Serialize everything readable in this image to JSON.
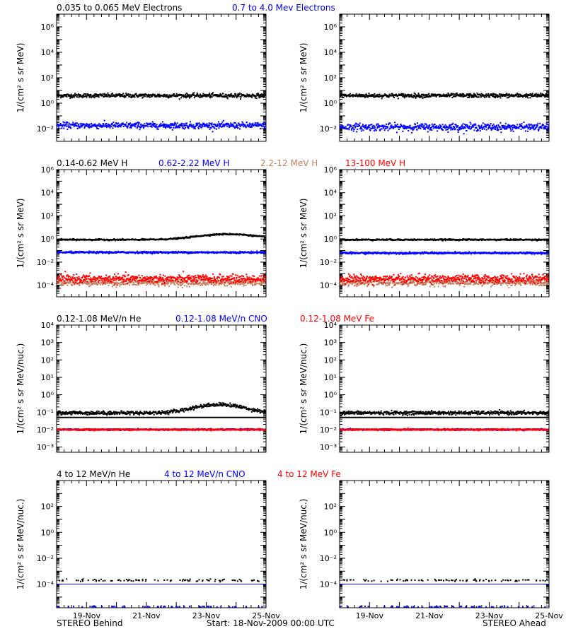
{
  "colors": {
    "black": "#000000",
    "blue": "#0000ff",
    "tan": "#c08060",
    "red": "#ff0000"
  },
  "footer": {
    "left": "STEREO Behind",
    "center": "Start: 18-Nov-2009 00:00 UTC",
    "right": "STEREO Ahead"
  },
  "x_axis": {
    "ticks": [
      "19-Nov",
      "21-Nov",
      "23-Nov",
      "25-Nov"
    ],
    "range_days_start": "18-Nov-2009 00:00",
    "tick_day_values": [
      1,
      3,
      5,
      7
    ]
  },
  "chart_data": [
    {
      "type": "scatter",
      "row": 1,
      "yscale": "log",
      "ylabel": "1/(cm² s sr MeV)",
      "ylim": [
        0.001,
        10000000
      ],
      "y_tick_labels": [
        "10⁻²",
        "10⁰",
        "10²",
        "10⁴",
        "10⁶"
      ],
      "legend": [
        {
          "text": "0.035 to 0.065 MeV Electrons",
          "color": "black"
        },
        {
          "text": "0.7 to 4.0 Mev Electrons",
          "color": "blue"
        }
      ],
      "panels": [
        {
          "spacecraft": "STEREO Behind",
          "series": [
            {
              "name": "0.035 to 0.065 MeV Electrons",
              "color": "black",
              "level": 4.5,
              "spread": 0.08
            },
            {
              "name": "0.7 to 4.0 Mev Electrons",
              "color": "blue",
              "level": 0.02,
              "spread": 0.12
            }
          ]
        },
        {
          "spacecraft": "STEREO Ahead",
          "series": [
            {
              "name": "0.035 to 0.065 MeV Electrons",
              "color": "black",
              "level": 4.5,
              "spread": 0.08
            },
            {
              "name": "0.7 to 4.0 Mev Electrons",
              "color": "blue",
              "level": 0.015,
              "spread": 0.14
            }
          ]
        }
      ]
    },
    {
      "type": "scatter",
      "row": 2,
      "yscale": "log",
      "ylabel": "1/(cm² s sr MeV)",
      "ylim": [
        1e-05,
        1000000
      ],
      "y_tick_labels": [
        "10⁻⁴",
        "10⁻²",
        "10⁰",
        "10²",
        "10⁴",
        "10⁶"
      ],
      "legend": [
        {
          "text": "0.14-0.62 MeV H",
          "color": "black"
        },
        {
          "text": "0.62-2.22 MeV H",
          "color": "blue"
        },
        {
          "text": "2.2-12 MeV H",
          "color": "tan"
        },
        {
          "text": "13-100 MeV H",
          "color": "red"
        }
      ],
      "panels": [
        {
          "spacecraft": "STEREO Behind",
          "series": [
            {
              "name": "0.14-0.62 MeV H",
              "color": "black",
              "level": 1.0,
              "spread": 0.03,
              "bump": {
                "center_day": 5.7,
                "width": 1.2,
                "factor": 3
              }
            },
            {
              "name": "0.62-2.22 MeV H",
              "color": "blue",
              "level": 0.08,
              "spread": 0.04
            },
            {
              "name": "2.2-12 MeV H",
              "color": "tan",
              "level": 0.0002,
              "spread": 0.15
            },
            {
              "name": "13-100 MeV H",
              "color": "red",
              "level": 0.0004,
              "spread": 0.18
            }
          ]
        },
        {
          "spacecraft": "STEREO Ahead",
          "series": [
            {
              "name": "0.14-0.62 MeV H",
              "color": "black",
              "level": 1.0,
              "spread": 0.03
            },
            {
              "name": "0.62-2.22 MeV H",
              "color": "blue",
              "level": 0.07,
              "spread": 0.04
            },
            {
              "name": "2.2-12 MeV H",
              "color": "tan",
              "level": 0.0002,
              "spread": 0.15
            },
            {
              "name": "13-100 MeV H",
              "color": "red",
              "level": 0.0004,
              "spread": 0.18
            }
          ]
        }
      ]
    },
    {
      "type": "scatter",
      "row": 3,
      "yscale": "log",
      "ylabel": "1/(cm² s sr MeV/nuc.)",
      "ylim": [
        0.0005,
        10000
      ],
      "y_tick_labels": [
        "10⁻³",
        "10⁻²",
        "10⁻¹",
        "10⁰",
        "10¹",
        "10²",
        "10³",
        "10⁴"
      ],
      "legend": [
        {
          "text": "0.12-1.08 MeV/n He",
          "color": "black"
        },
        {
          "text": "0.12-1.08 MeV/n CNO",
          "color": "blue"
        },
        {
          "text": "0.12-1.08 MeV Fe",
          "color": "red"
        }
      ],
      "panels": [
        {
          "spacecraft": "STEREO Behind",
          "series": [
            {
              "name": "0.12-1.08 MeV/n He",
              "color": "black",
              "level": 0.1,
              "spread": 0.05,
              "baseline": 0.05,
              "bump": {
                "center_day": 5.4,
                "width": 1.0,
                "factor": 3
              }
            },
            {
              "name": "0.12-1.08 MeV/n CNO",
              "color": "blue",
              "level": 0.011,
              "spread": 0.02
            },
            {
              "name": "0.12-1.08 MeV Fe",
              "color": "red",
              "level": 0.011,
              "spread": 0.02
            }
          ]
        },
        {
          "spacecraft": "STEREO Ahead",
          "series": [
            {
              "name": "0.12-1.08 MeV/n He",
              "color": "black",
              "level": 0.1,
              "spread": 0.05,
              "baseline": 0.05
            },
            {
              "name": "0.12-1.08 MeV/n CNO",
              "color": "blue",
              "level": 0.011,
              "spread": 0.02
            },
            {
              "name": "0.12-1.08 MeV Fe",
              "color": "red",
              "level": 0.011,
              "spread": 0.02
            }
          ]
        }
      ]
    },
    {
      "type": "scatter",
      "row": 4,
      "yscale": "log",
      "ylabel": "1/(cm² s sr MeV/nuc.)",
      "ylim": [
        1.5e-06,
        10000
      ],
      "y_tick_labels": [
        "10⁻⁴",
        "10⁻²",
        "10⁰",
        "10²"
      ],
      "legend": [
        {
          "text": "4 to 12 MeV/n He",
          "color": "black"
        },
        {
          "text": "4 to 12 MeV/n CNO",
          "color": "blue"
        },
        {
          "text": "4 to 12 MeV Fe",
          "color": "red"
        }
      ],
      "panels": [
        {
          "spacecraft": "STEREO Behind",
          "series": [
            {
              "name": "4 to 12 MeV/n He",
              "color": "black",
              "level": 0.00022,
              "spread": 0.04,
              "sparse": true
            },
            {
              "name": "4 to 12 MeV/n CNO",
              "color": "blue",
              "level": 0.0001,
              "spread": 0.0,
              "line": true
            }
          ]
        },
        {
          "spacecraft": "STEREO Ahead",
          "series": [
            {
              "name": "4 to 12 MeV/n He",
              "color": "black",
              "level": 0.00022,
              "spread": 0.04,
              "sparse": true
            },
            {
              "name": "4 to 12 MeV/n CNO",
              "color": "blue",
              "level": 0.0001,
              "spread": 0.0,
              "line": true
            }
          ]
        }
      ]
    }
  ]
}
